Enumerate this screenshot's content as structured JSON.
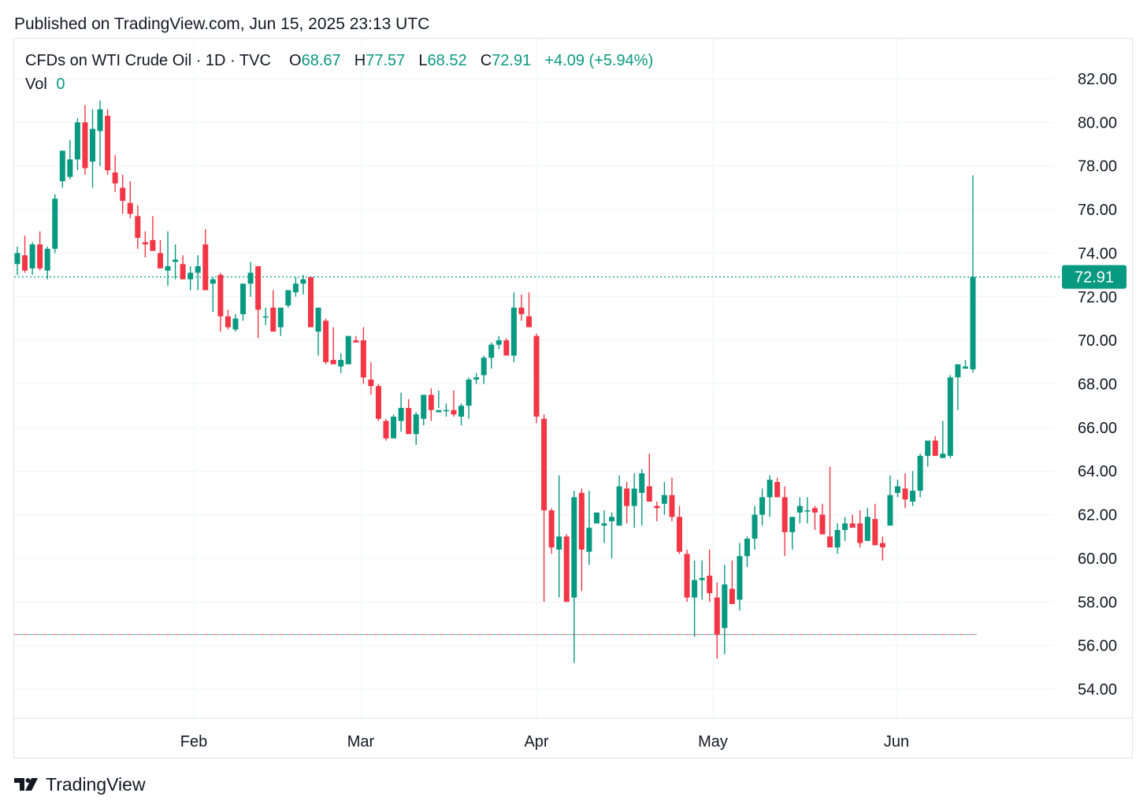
{
  "published": "Published on TradingView.com, Jun 15, 2025 23:13 UTC",
  "legend": {
    "symbol": "CFDs on WTI Crude Oil · 1D · TVC",
    "o_label": "O",
    "o_value": "68.67",
    "h_label": "H",
    "h_value": "77.57",
    "l_label": "L",
    "l_value": "68.52",
    "c_label": "C",
    "c_value": "72.91",
    "change": "+4.09 (+5.94%)",
    "vol_label": "Vol",
    "vol_value": "0"
  },
  "footer": {
    "brand": "TradingView"
  },
  "colors": {
    "up": "#089981",
    "down": "#f23645",
    "grid": "#f0f3fa",
    "text": "#131722"
  },
  "chart_data": {
    "type": "candlestick",
    "x_tick_labels": [
      "Feb",
      "Mar",
      "Apr",
      "May",
      "Jun"
    ],
    "y_tick_labels": [
      "82.00",
      "80.00",
      "78.00",
      "76.00",
      "74.00",
      "72.00",
      "70.00",
      "68.00",
      "66.00",
      "64.00",
      "62.00",
      "60.00",
      "58.00",
      "56.00",
      "54.00"
    ],
    "ylim": [
      52.8,
      83.5
    ],
    "last_price_label": "72.91",
    "last_price": 72.91,
    "reference_level": 56.5,
    "grid": true,
    "candles_ohlc": [
      [
        73.5,
        74.3,
        73.0,
        74.0
      ],
      [
        73.9,
        74.8,
        73.1,
        73.2
      ],
      [
        73.3,
        74.5,
        73.0,
        74.4
      ],
      [
        74.4,
        75.0,
        73.2,
        73.3
      ],
      [
        73.2,
        74.3,
        72.8,
        74.2
      ],
      [
        74.2,
        76.7,
        74.0,
        76.5
      ],
      [
        77.3,
        78.5,
        77.0,
        78.7
      ],
      [
        77.5,
        79.2,
        77.4,
        78.3
      ],
      [
        78.3,
        80.2,
        77.8,
        80.0
      ],
      [
        80.0,
        80.8,
        77.6,
        77.9
      ],
      [
        78.2,
        80.6,
        77.0,
        79.7
      ],
      [
        79.6,
        81.0,
        78.0,
        80.6
      ],
      [
        80.3,
        80.6,
        77.6,
        77.8
      ],
      [
        77.7,
        78.5,
        76.8,
        77.2
      ],
      [
        77.0,
        77.6,
        75.8,
        76.4
      ],
      [
        76.3,
        77.3,
        75.6,
        75.8
      ],
      [
        75.7,
        76.2,
        74.2,
        74.7
      ],
      [
        74.5,
        75.0,
        73.8,
        74.4
      ],
      [
        74.6,
        75.7,
        74.2,
        74.1
      ],
      [
        74.0,
        74.6,
        73.7,
        73.3
      ],
      [
        73.2,
        75.0,
        72.5,
        73.4
      ],
      [
        73.6,
        74.4,
        72.8,
        73.7
      ],
      [
        73.5,
        73.9,
        72.8,
        72.8
      ],
      [
        72.8,
        73.4,
        72.3,
        73.1
      ],
      [
        73.1,
        73.9,
        72.3,
        73.4
      ],
      [
        74.4,
        75.1,
        72.4,
        72.3
      ],
      [
        72.6,
        72.9,
        71.3,
        72.8
      ],
      [
        73.0,
        73.1,
        70.4,
        71.1
      ],
      [
        71.1,
        71.4,
        70.5,
        70.6
      ],
      [
        70.5,
        71.2,
        70.4,
        71.0
      ],
      [
        71.2,
        72.6,
        70.9,
        72.6
      ],
      [
        72.6,
        73.6,
        72.0,
        73.1
      ],
      [
        73.4,
        73.4,
        70.1,
        71.4
      ],
      [
        71.1,
        71.5,
        70.7,
        71.1
      ],
      [
        71.5,
        72.3,
        70.4,
        70.4
      ],
      [
        70.6,
        71.4,
        70.2,
        71.5
      ],
      [
        71.6,
        72.3,
        71.5,
        72.3
      ],
      [
        72.2,
        72.9,
        72.0,
        72.6
      ],
      [
        72.6,
        73.0,
        72.1,
        72.8
      ],
      [
        72.9,
        72.8,
        70.9,
        70.6
      ],
      [
        70.4,
        71.1,
        69.3,
        71.5
      ],
      [
        70.9,
        71.0,
        68.9,
        69.0
      ],
      [
        69.1,
        70.6,
        69.1,
        68.9
      ],
      [
        68.8,
        69.4,
        68.5,
        69.1
      ],
      [
        68.9,
        70.1,
        69.0,
        70.2
      ],
      [
        70.0,
        70.2,
        69.9,
        69.9
      ],
      [
        70.0,
        70.6,
        68.0,
        68.3
      ],
      [
        68.2,
        69.0,
        67.5,
        67.9
      ],
      [
        67.9,
        68.0,
        66.3,
        66.4
      ],
      [
        66.3,
        66.4,
        65.4,
        65.5
      ],
      [
        65.5,
        66.6,
        65.6,
        66.5
      ],
      [
        66.3,
        67.6,
        65.8,
        66.9
      ],
      [
        66.9,
        67.3,
        65.7,
        65.7
      ],
      [
        65.7,
        66.7,
        65.2,
        66.6
      ],
      [
        66.4,
        67.2,
        66.1,
        67.5
      ],
      [
        67.5,
        67.8,
        66.3,
        66.8
      ],
      [
        66.7,
        67.7,
        66.9,
        66.8
      ],
      [
        66.8,
        67.1,
        66.5,
        66.8
      ],
      [
        66.8,
        67.7,
        66.5,
        66.6
      ],
      [
        66.5,
        67.1,
        66.1,
        67.0
      ],
      [
        67.0,
        68.3,
        66.4,
        68.2
      ],
      [
        68.2,
        68.5,
        68.0,
        68.3
      ],
      [
        68.4,
        69.3,
        68.0,
        69.2
      ],
      [
        69.2,
        69.9,
        68.7,
        69.8
      ],
      [
        69.8,
        70.2,
        69.6,
        70.0
      ],
      [
        70.0,
        70.1,
        69.3,
        69.3
      ],
      [
        69.3,
        72.2,
        69.0,
        71.5
      ],
      [
        71.5,
        72.1,
        70.9,
        71.2
      ],
      [
        71.1,
        72.2,
        70.6,
        70.6
      ],
      [
        70.2,
        70.3,
        66.2,
        66.5
      ],
      [
        66.4,
        66.6,
        58.0,
        62.2
      ],
      [
        62.2,
        62.3,
        60.2,
        60.5
      ],
      [
        60.4,
        63.8,
        58.2,
        61.0
      ],
      [
        61.0,
        61.1,
        58.3,
        58.0
      ],
      [
        58.2,
        63.1,
        55.2,
        62.8
      ],
      [
        63.0,
        63.2,
        58.5,
        60.4
      ],
      [
        60.3,
        63.1,
        59.7,
        61.4
      ],
      [
        61.6,
        62.1,
        61.6,
        62.1
      ],
      [
        61.5,
        62.2,
        60.7,
        61.6
      ],
      [
        61.7,
        62.1,
        60.0,
        61.9
      ],
      [
        61.5,
        63.8,
        61.5,
        63.3
      ],
      [
        63.2,
        63.5,
        61.6,
        62.4
      ],
      [
        62.4,
        63.9,
        61.4,
        63.2
      ],
      [
        63.0,
        64.1,
        61.5,
        63.9
      ],
      [
        63.3,
        64.8,
        62.6,
        62.6
      ],
      [
        62.4,
        62.6,
        61.7,
        62.3
      ],
      [
        62.5,
        63.5,
        62.0,
        62.9
      ],
      [
        62.9,
        63.7,
        61.7,
        61.9
      ],
      [
        61.9,
        62.4,
        60.2,
        60.3
      ],
      [
        60.2,
        60.4,
        58.0,
        58.2
      ],
      [
        58.2,
        59.9,
        56.4,
        59.0
      ],
      [
        59.0,
        59.9,
        58.1,
        59.1
      ],
      [
        59.2,
        60.4,
        58.0,
        58.4
      ],
      [
        58.2,
        58.9,
        55.4,
        56.5
      ],
      [
        56.8,
        59.7,
        55.6,
        58.8
      ],
      [
        58.6,
        59.9,
        57.9,
        57.9
      ],
      [
        58.1,
        60.7,
        57.6,
        60.1
      ],
      [
        60.1,
        61.0,
        59.6,
        60.9
      ],
      [
        60.9,
        62.4,
        60.4,
        62.0
      ],
      [
        62.0,
        63.2,
        61.5,
        62.8
      ],
      [
        62.8,
        63.8,
        61.9,
        63.6
      ],
      [
        63.5,
        63.7,
        62.8,
        62.8
      ],
      [
        62.8,
        63.3,
        60.1,
        61.2
      ],
      [
        61.2,
        61.6,
        60.4,
        61.9
      ],
      [
        62.1,
        62.8,
        61.6,
        62.4
      ],
      [
        62.2,
        62.8,
        61.6,
        62.2
      ],
      [
        62.3,
        62.4,
        61.3,
        62.1
      ],
      [
        62.0,
        62.5,
        61.3,
        61.1
      ],
      [
        61.0,
        64.2,
        60.6,
        60.5
      ],
      [
        60.5,
        61.6,
        60.2,
        61.3
      ],
      [
        61.3,
        61.9,
        60.8,
        61.6
      ],
      [
        61.6,
        62.0,
        61.5,
        61.4
      ],
      [
        61.6,
        62.2,
        60.5,
        60.7
      ],
      [
        60.8,
        62.3,
        60.8,
        61.9
      ],
      [
        61.8,
        62.5,
        60.6,
        60.6
      ],
      [
        60.7,
        61.0,
        59.9,
        60.5
      ],
      [
        61.5,
        63.8,
        61.5,
        62.9
      ],
      [
        63.0,
        63.6,
        62.8,
        63.3
      ],
      [
        63.2,
        63.9,
        62.3,
        62.7
      ],
      [
        62.6,
        64.0,
        62.4,
        63.1
      ],
      [
        63.1,
        64.8,
        62.8,
        64.7
      ],
      [
        64.7,
        65.3,
        64.2,
        65.4
      ],
      [
        65.4,
        65.6,
        64.7,
        64.7
      ],
      [
        64.6,
        66.3,
        64.6,
        64.8
      ],
      [
        64.7,
        68.4,
        64.6,
        68.3
      ],
      [
        68.3,
        68.7,
        66.8,
        68.9
      ],
      [
        68.7,
        69.1,
        68.7,
        68.8
      ],
      [
        68.67,
        77.57,
        68.52,
        72.91
      ]
    ]
  }
}
